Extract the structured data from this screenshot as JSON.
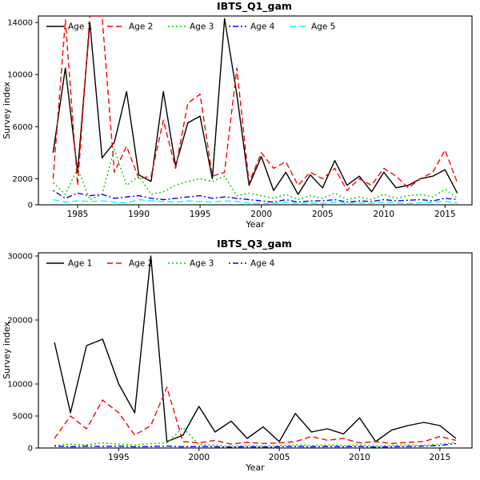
{
  "chart_data": [
    {
      "type": "line",
      "title": "IBTS_Q1_gam",
      "xlabel": "Year",
      "ylabel": "Survey index",
      "xlim": [
        1981.8,
        2017.2
      ],
      "ylim": [
        0,
        14500
      ],
      "xticks": [
        1985,
        1990,
        1995,
        2000,
        2005,
        2010,
        2015
      ],
      "yticks": [
        0,
        2000,
        6000,
        10000,
        14000
      ],
      "grid": false,
      "legend_position": "top-left-horizontal",
      "x": [
        1983,
        1984,
        1985,
        1986,
        1987,
        1988,
        1989,
        1990,
        1991,
        1992,
        1993,
        1994,
        1995,
        1996,
        1997,
        1998,
        1999,
        2000,
        2001,
        2002,
        2003,
        2004,
        2005,
        2006,
        2007,
        2008,
        2009,
        2010,
        2011,
        2012,
        2013,
        2014,
        2015,
        2016
      ],
      "series": [
        {
          "name": "Age 1",
          "color": "#000000",
          "dash": "solid",
          "values": [
            4000,
            10500,
            2500,
            14000,
            3600,
            4800,
            8700,
            2300,
            1800,
            8700,
            3000,
            6300,
            6800,
            2000,
            14300,
            8500,
            1500,
            3700,
            1100,
            2500,
            800,
            2300,
            1300,
            3400,
            1500,
            2200,
            1000,
            2500,
            1300,
            1500,
            2000,
            2200,
            2700,
            900
          ]
        },
        {
          "name": "Age 2",
          "color": "#ff0000",
          "dash": "dashed",
          "values": [
            2000,
            14200,
            1500,
            14500,
            14500,
            2500,
            4500,
            2000,
            2200,
            6500,
            2800,
            7800,
            8500,
            2200,
            2500,
            10500,
            1700,
            4000,
            2800,
            3300,
            1500,
            2500,
            2000,
            2800,
            1100,
            2000,
            1500,
            2800,
            2200,
            1300,
            2000,
            2500,
            4200,
            1700
          ]
        },
        {
          "name": "Age 3",
          "color": "#00cd00",
          "dash": "dotted",
          "values": [
            1700,
            800,
            2800,
            400,
            800,
            4300,
            1500,
            2200,
            800,
            1000,
            1500,
            1800,
            2000,
            1800,
            2200,
            700,
            900,
            700,
            500,
            800,
            400,
            700,
            500,
            900,
            400,
            600,
            400,
            800,
            500,
            700,
            800,
            600,
            1200,
            500
          ]
        },
        {
          "name": "Age 4",
          "color": "#0000ff",
          "dash": "dashdot",
          "values": [
            1100,
            500,
            900,
            700,
            800,
            500,
            600,
            700,
            500,
            400,
            500,
            600,
            700,
            500,
            600,
            500,
            400,
            300,
            200,
            400,
            200,
            300,
            300,
            400,
            200,
            300,
            250,
            400,
            300,
            350,
            400,
            300,
            500,
            400
          ]
        },
        {
          "name": "Age 5",
          "color": "#00ffff",
          "dash": "longdash",
          "values": [
            400,
            200,
            300,
            250,
            300,
            200,
            150,
            400,
            300,
            250,
            200,
            300,
            250,
            200,
            300,
            250,
            150,
            100,
            100,
            200,
            100,
            150,
            100,
            200,
            100,
            150,
            100,
            200,
            150,
            100,
            150,
            200,
            250,
            150
          ]
        }
      ]
    },
    {
      "type": "line",
      "title": "IBTS_Q3_gam",
      "xlabel": "Year",
      "ylabel": "Survey index",
      "xlim": [
        1990.0,
        2017.0
      ],
      "ylim": [
        0,
        30500
      ],
      "xticks": [
        1995,
        2000,
        2005,
        2010,
        2015
      ],
      "yticks": [
        0,
        5000,
        10000,
        20000,
        30000
      ],
      "grid": false,
      "legend_position": "top-left-horizontal",
      "x": [
        1991,
        1992,
        1993,
        1994,
        1995,
        1996,
        1997,
        1998,
        1999,
        2000,
        2001,
        2002,
        2003,
        2004,
        2005,
        2006,
        2007,
        2008,
        2009,
        2010,
        2011,
        2012,
        2013,
        2014,
        2015,
        2016
      ],
      "series": [
        {
          "name": "Age 1",
          "color": "#000000",
          "dash": "solid",
          "values": [
            16500,
            5500,
            16000,
            17000,
            10000,
            5500,
            30000,
            1000,
            2000,
            6500,
            2500,
            4200,
            1500,
            3300,
            1000,
            5400,
            2500,
            3000,
            2200,
            4700,
            1000,
            2800,
            3500,
            4000,
            3500,
            1500
          ]
        },
        {
          "name": "Age 2",
          "color": "#ff0000",
          "dash": "dashed",
          "values": [
            1500,
            5000,
            3000,
            7500,
            5500,
            2000,
            3500,
            9500,
            1000,
            800,
            1200,
            600,
            900,
            700,
            800,
            1000,
            1800,
            1200,
            1500,
            800,
            1000,
            700,
            900,
            1000,
            1800,
            1200
          ]
        },
        {
          "name": "Age 3",
          "color": "#00cd00",
          "dash": "dotted",
          "values": [
            400,
            600,
            500,
            800,
            600,
            500,
            700,
            800,
            3200,
            500,
            400,
            300,
            400,
            300,
            400,
            500,
            400,
            500,
            400,
            500,
            300,
            400,
            500,
            400,
            600,
            800
          ]
        },
        {
          "name": "Age 4",
          "color": "#0000ff",
          "dash": "dashdot",
          "values": [
            300,
            200,
            300,
            250,
            300,
            200,
            250,
            300,
            200,
            250,
            200,
            150,
            200,
            150,
            200,
            250,
            200,
            250,
            200,
            250,
            150,
            200,
            250,
            300,
            400,
            700
          ]
        }
      ]
    }
  ]
}
